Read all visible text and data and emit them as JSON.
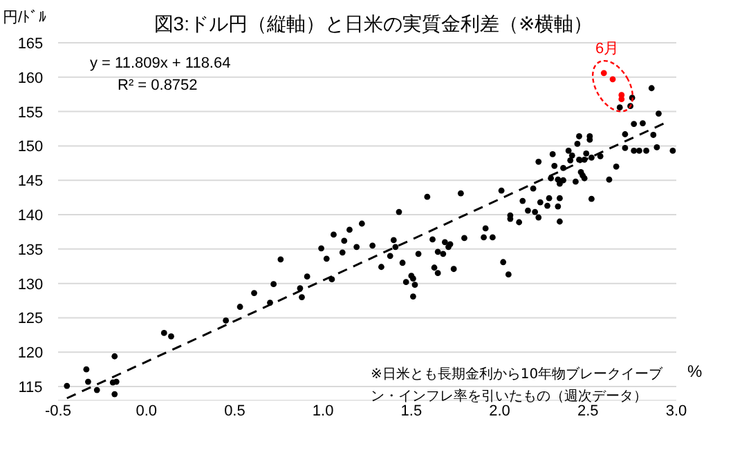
{
  "chart_data": {
    "type": "scatter",
    "title": "図3:ドル円（縦軸）と日米の実質金利差（※横軸）",
    "ylabel": "円/ﾄﾞﾙ",
    "xlabel": "%",
    "xlim": [
      -0.5,
      3.0
    ],
    "ylim": [
      113,
      165
    ],
    "xticks": [
      {
        "value": -0.5,
        "label": "-0.5"
      },
      {
        "value": 0,
        "label": "0.0"
      },
      {
        "value": 0.5,
        "label": "0.5"
      },
      {
        "value": 1,
        "label": "1.0"
      },
      {
        "value": 1.5,
        "label": "1.5"
      },
      {
        "value": 2,
        "label": "2.0"
      },
      {
        "value": 2.5,
        "label": "2.5"
      },
      {
        "value": 3,
        "label": "3.0"
      }
    ],
    "yticks": [
      115,
      120,
      125,
      130,
      135,
      140,
      145,
      150,
      155,
      160,
      165
    ],
    "grid": "y",
    "marker": "circle",
    "series": [
      {
        "color": "#000000",
        "x": [
          -0.45,
          -0.34,
          -0.33,
          -0.28,
          -0.18,
          -0.19,
          -0.17,
          -0.18,
          0.1,
          0.14,
          0.45,
          0.53,
          0.61,
          0.7,
          0.72,
          0.76,
          0.87,
          0.88,
          0.91,
          0.99,
          1.02,
          1.05,
          1.06,
          1.11,
          1.12,
          1.15,
          1.19,
          1.22,
          1.28,
          1.33,
          1.38,
          1.4,
          1.41,
          1.43,
          1.45,
          1.47,
          1.5,
          1.51,
          1.52,
          1.51,
          1.54,
          1.59,
          1.62,
          1.63,
          1.65,
          1.65,
          1.68,
          1.69,
          1.71,
          1.72,
          1.74,
          1.78,
          1.8,
          1.91,
          1.96,
          1.92,
          2.01,
          2.02,
          2.05,
          2.06,
          2.06,
          2.11,
          2.13,
          2.16,
          2.19,
          2.2,
          2.22,
          2.22,
          2.23,
          2.27,
          2.28,
          2.29,
          2.3,
          2.31,
          2.33,
          2.33,
          2.34,
          2.34,
          2.34,
          2.36,
          2.36,
          2.39,
          2.4,
          2.41,
          2.43,
          2.44,
          2.45,
          2.45,
          2.46,
          2.47,
          2.48,
          2.48,
          2.49,
          2.51,
          2.51,
          2.52,
          2.52,
          2.57,
          2.62,
          2.66,
          2.68,
          2.71,
          2.71,
          2.74,
          2.75,
          2.76,
          2.76,
          2.79,
          2.81,
          2.83,
          2.86,
          2.87,
          2.89,
          2.9,
          2.98
        ],
        "values": [
          115.1,
          117.5,
          115.7,
          114.5,
          119.4,
          115.6,
          115.7,
          113.9,
          122.8,
          122.3,
          124.6,
          126.6,
          128.6,
          127.2,
          129.9,
          133.5,
          129.3,
          128.0,
          131.0,
          135.1,
          133.6,
          130.6,
          137.1,
          134.5,
          136.2,
          137.8,
          135.3,
          138.7,
          135.5,
          132.4,
          134.0,
          136.3,
          135.3,
          140.4,
          133.0,
          130.2,
          131.1,
          130.7,
          129.8,
          128.1,
          134.3,
          142.6,
          136.4,
          132.3,
          131.5,
          134.6,
          134.3,
          136.0,
          135.3,
          135.7,
          132.1,
          143.1,
          136.6,
          136.7,
          136.7,
          138.0,
          143.5,
          133.1,
          131.3,
          139.4,
          139.9,
          138.9,
          142.0,
          140.6,
          143.8,
          140.4,
          139.6,
          147.7,
          141.8,
          141.3,
          142.4,
          145.3,
          148.8,
          147.1,
          141.2,
          145.1,
          139.0,
          142.4,
          144.5,
          145.0,
          146.8,
          149.3,
          147.9,
          148.6,
          144.8,
          150.3,
          151.4,
          148.0,
          146.2,
          145.7,
          145.3,
          148.0,
          148.9,
          150.9,
          151.4,
          142.3,
          148.3,
          148.5,
          145.1,
          147.0,
          155.6,
          149.7,
          151.7,
          155.8,
          157.0,
          153.2,
          149.3,
          149.3,
          153.3,
          149.3,
          158.4,
          151.6,
          149.8,
          154.7,
          149.3
        ]
      },
      {
        "color": "#ff0000",
        "x": [
          2.59,
          2.64,
          2.69,
          2.69
        ],
        "values": [
          160.6,
          159.7,
          157.4,
          156.8
        ]
      },
      {
        "type": "line",
        "color": "#000000",
        "line_style": "dashed",
        "marker": "none",
        "x": [
          -0.45,
          2.95
        ],
        "values": [
          113.3,
          153.5
        ]
      }
    ],
    "annotations": [
      "y = 11.809x + 118.64",
      "R² = 0.8752",
      "6月",
      "※日米とも長期金利から10年物ブレークイーブン・インフレ率を引いたもの（週次データ）"
    ]
  }
}
